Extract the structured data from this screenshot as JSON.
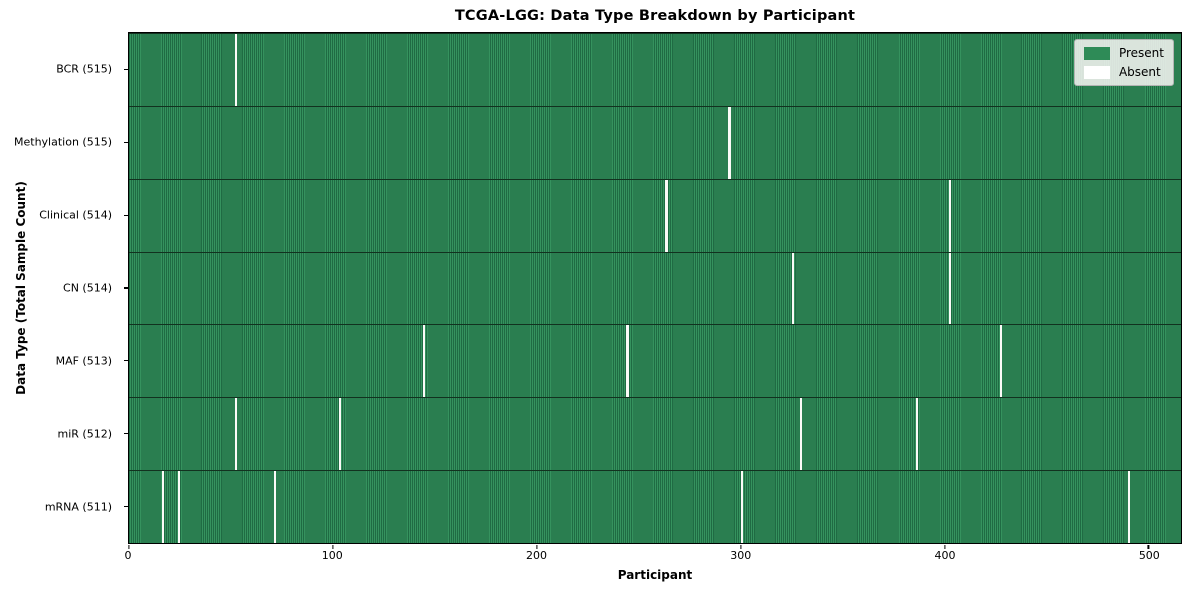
{
  "colors": {
    "present": "#2e8b57",
    "absent": "#fbfbf8",
    "stripe_dark": "#1f6b43",
    "stripe_light": "#35925e",
    "row_edge": "#12311f"
  },
  "chart_data": {
    "type": "heatmap",
    "title": "TCGA-LGG: Data Type Breakdown by Participant",
    "xlabel": "Participant",
    "ylabel": "Data Type (Total Sample Count)",
    "x_range": [
      0,
      516
    ],
    "x_ticks": [
      0,
      100,
      200,
      300,
      400,
      500
    ],
    "total_participants": 516,
    "grid": false,
    "legend_position": "upper right",
    "legend_entries": [
      {
        "label": "Present",
        "color": "#2e8b57"
      },
      {
        "label": "Absent",
        "color": "#ffffff"
      }
    ],
    "rows": [
      {
        "data_type": "BCR",
        "label": "BCR (515)",
        "present_count": 515,
        "absent_participants": [
          52
        ]
      },
      {
        "data_type": "Methylation",
        "label": "Methylation (515)",
        "present_count": 515,
        "absent_participants": [
          294
        ]
      },
      {
        "data_type": "Clinical",
        "label": "Clinical (514)",
        "present_count": 514,
        "absent_participants": [
          263,
          402
        ]
      },
      {
        "data_type": "CN",
        "label": "CN (514)",
        "present_count": 514,
        "absent_participants": [
          325,
          402
        ]
      },
      {
        "data_type": "MAF",
        "label": "MAF (513)",
        "present_count": 513,
        "absent_participants": [
          144,
          244,
          427
        ]
      },
      {
        "data_type": "miR",
        "label": "miR (512)",
        "present_count": 512,
        "absent_participants": [
          52,
          103,
          329,
          386
        ]
      },
      {
        "data_type": "mRNA",
        "label": "mRNA (511)",
        "present_count": 511,
        "absent_participants": [
          16,
          24,
          71,
          300,
          490
        ]
      }
    ]
  }
}
